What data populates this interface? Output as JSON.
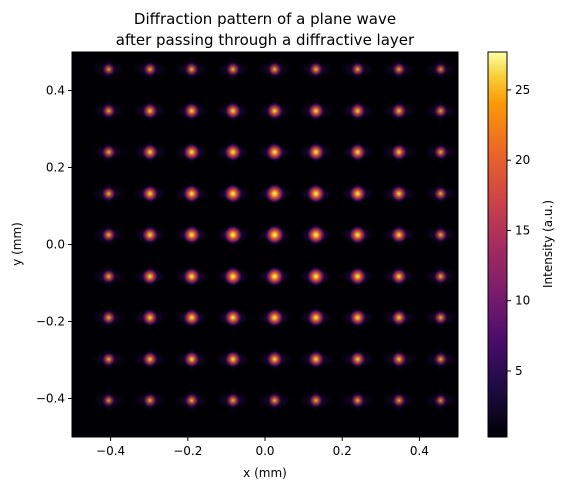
{
  "chart_data": {
    "type": "heatmap",
    "title_line1": "Diffraction pattern of a plane wave",
    "title_line2": "after passing through a diffractive layer",
    "xlabel": "x (mm)",
    "ylabel": "y (mm)",
    "xlim": [
      -0.5,
      0.5
    ],
    "ylim": [
      -0.5,
      0.5
    ],
    "xticks": [
      -0.4,
      -0.2,
      0.0,
      0.2,
      0.4
    ],
    "xtick_labels": [
      "−0.4",
      "−0.2",
      "0.0",
      "0.2",
      "0.4"
    ],
    "yticks": [
      -0.4,
      -0.2,
      0.0,
      0.2,
      0.4
    ],
    "ytick_labels": [
      "−0.4",
      "−0.2",
      "0.0",
      "0.2",
      "0.4"
    ],
    "colormap": "inferno",
    "colorbar": {
      "label": "Intensity (a.u.)",
      "range": [
        0.3,
        27.7
      ],
      "ticks": [
        5,
        10,
        15,
        20,
        25
      ],
      "tick_labels": [
        "5",
        "10",
        "15",
        "20",
        "25"
      ]
    },
    "spots": {
      "x": [
        -0.405,
        -0.298,
        -0.19,
        -0.083,
        0.025,
        0.132,
        0.24,
        0.347,
        0.455
      ],
      "y": [
        0.455,
        0.347,
        0.24,
        0.132,
        0.025,
        -0.083,
        -0.19,
        -0.298,
        -0.405
      ],
      "peak_intensity": [
        [
          8,
          11,
          12,
          12,
          12,
          12,
          11,
          10,
          7
        ],
        [
          11,
          16,
          18,
          19,
          19,
          19,
          17,
          15,
          10
        ],
        [
          12,
          18,
          21,
          22,
          23,
          22,
          20,
          17,
          11
        ],
        [
          12,
          19,
          22,
          25,
          27,
          25,
          22,
          18,
          11
        ],
        [
          12,
          19,
          23,
          26,
          27.7,
          26,
          23,
          19,
          11
        ],
        [
          12,
          19,
          22,
          25,
          26,
          25,
          22,
          18,
          11
        ],
        [
          12,
          18,
          21,
          22,
          23,
          22,
          20,
          17,
          11
        ],
        [
          11,
          16,
          18,
          19,
          19,
          19,
          17,
          15,
          10
        ],
        [
          8,
          11,
          12,
          12,
          12,
          12,
          11,
          10,
          7
        ]
      ]
    }
  }
}
